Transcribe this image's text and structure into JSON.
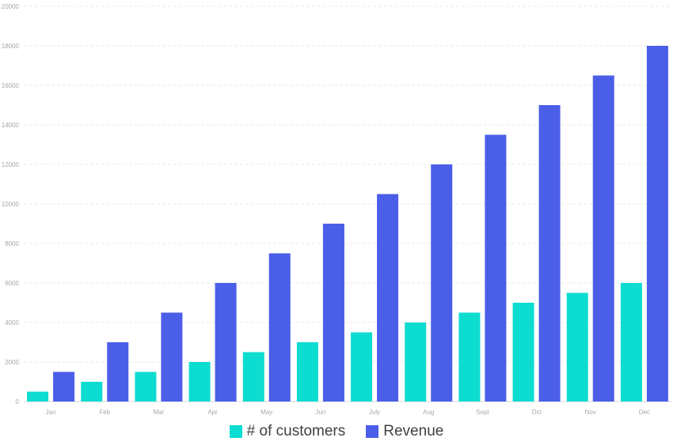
{
  "chart_data": {
    "type": "bar",
    "categories": [
      "Jan",
      "Feb",
      "Mar",
      "Apr",
      "May",
      "Jun",
      "July",
      "Aug",
      "Sept",
      "Oct",
      "Nov",
      "Dec"
    ],
    "series": [
      {
        "name": "# of customers",
        "color": "#0DDCD0",
        "values": [
          500,
          1000,
          1500,
          2000,
          2500,
          3000,
          3500,
          4000,
          4500,
          5000,
          5500,
          6000
        ]
      },
      {
        "name": "Revenue",
        "color": "#4B5EE8",
        "values": [
          1500,
          3000,
          4500,
          6000,
          7500,
          9000,
          10500,
          12000,
          13500,
          15000,
          16500,
          18000
        ]
      }
    ],
    "title": "",
    "xlabel": "",
    "ylabel": "",
    "ylim": [
      0,
      20000
    ],
    "yticks": [
      0,
      2000,
      4000,
      6000,
      8000,
      10000,
      12000,
      14000,
      16000,
      18000,
      20000
    ],
    "grid": true,
    "legend_position": "bottom"
  }
}
